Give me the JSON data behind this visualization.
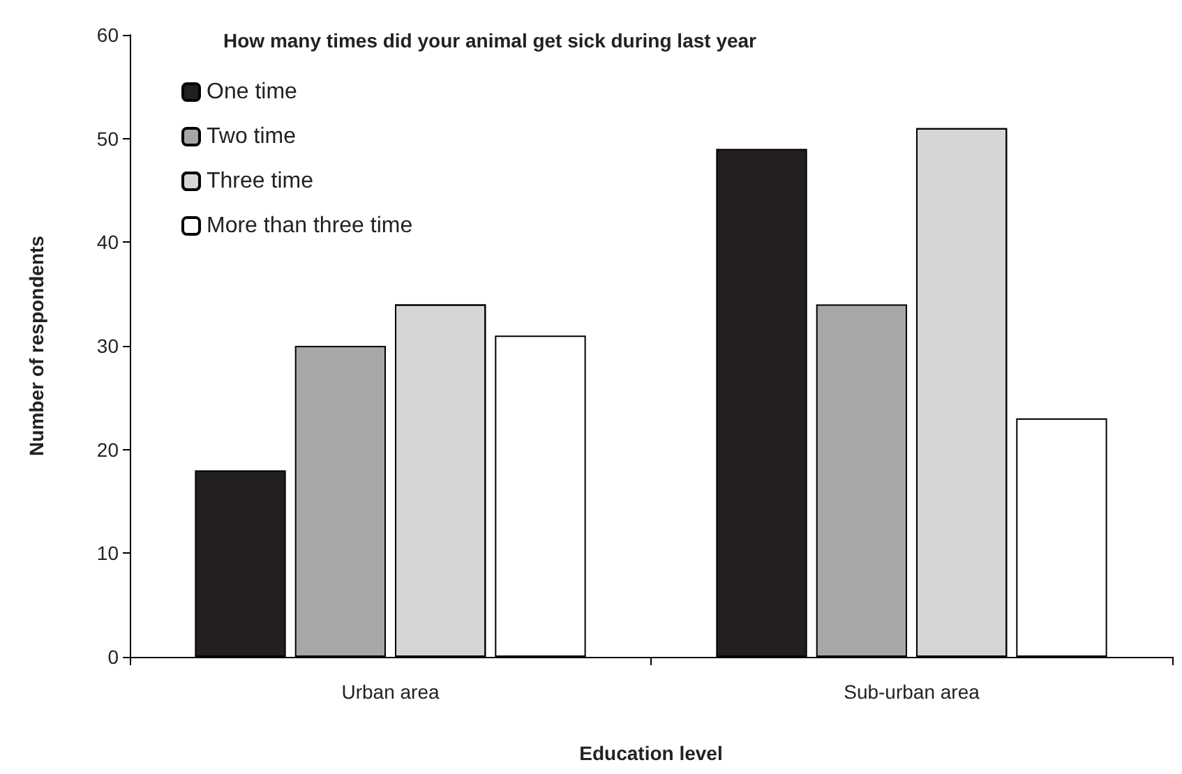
{
  "chart_data": {
    "type": "bar",
    "title": "How many times did your animal get sick during last year",
    "xlabel": "Education level",
    "ylabel": "Number of respondents",
    "categories": [
      "Urban area",
      "Sub-urban area"
    ],
    "series": [
      {
        "name": "One time",
        "color": "#231f20",
        "values": [
          18,
          49
        ]
      },
      {
        "name": "Two time",
        "color": "#a7a7aa",
        "values": [
          30,
          34
        ]
      },
      {
        "name": "Three time",
        "color": "#d6d6d6",
        "values": [
          34,
          51
        ]
      },
      {
        "name": "More than three time",
        "color": "#ffffff",
        "values": [
          31,
          23
        ]
      }
    ],
    "ylim": [
      0,
      60
    ],
    "yticks": [
      0,
      10,
      20,
      30,
      40,
      50,
      60
    ],
    "grid": false,
    "legend": "top left"
  }
}
